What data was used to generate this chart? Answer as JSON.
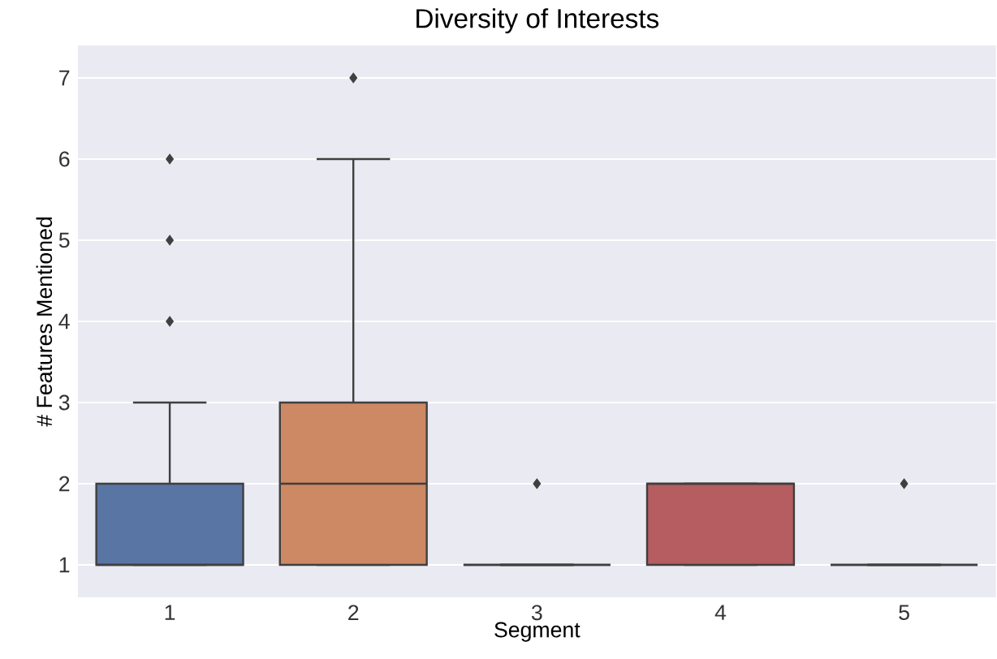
{
  "chart_data": {
    "type": "box",
    "title": "Diversity of Interests",
    "xlabel": "Segment",
    "ylabel": "# Features Mentioned",
    "categories": [
      "1",
      "2",
      "3",
      "4",
      "5"
    ],
    "colors": [
      "#5875a4",
      "#cc8963",
      "#3f3f3f",
      "#b55d60",
      "#3f3f3f"
    ],
    "boxes": [
      {
        "low": 1,
        "q1": 1,
        "median": 1,
        "q3": 2,
        "high": 3,
        "outliers": [
          4,
          5,
          6
        ]
      },
      {
        "low": 1,
        "q1": 1,
        "median": 2,
        "q3": 3,
        "high": 6,
        "outliers": [
          7
        ]
      },
      {
        "low": 1,
        "q1": 1,
        "median": 1,
        "q3": 1,
        "high": 1,
        "outliers": [
          2
        ]
      },
      {
        "low": 1,
        "q1": 1,
        "median": 2,
        "q3": 2,
        "high": 2
      },
      {
        "low": 1,
        "q1": 1,
        "median": 1,
        "q3": 1,
        "high": 1,
        "outliers": [
          2
        ]
      }
    ],
    "ylim": [
      0.6,
      7.4
    ],
    "yticks": [
      1,
      2,
      3,
      4,
      5,
      6,
      7
    ],
    "grid": "y",
    "marker": "diamond"
  }
}
